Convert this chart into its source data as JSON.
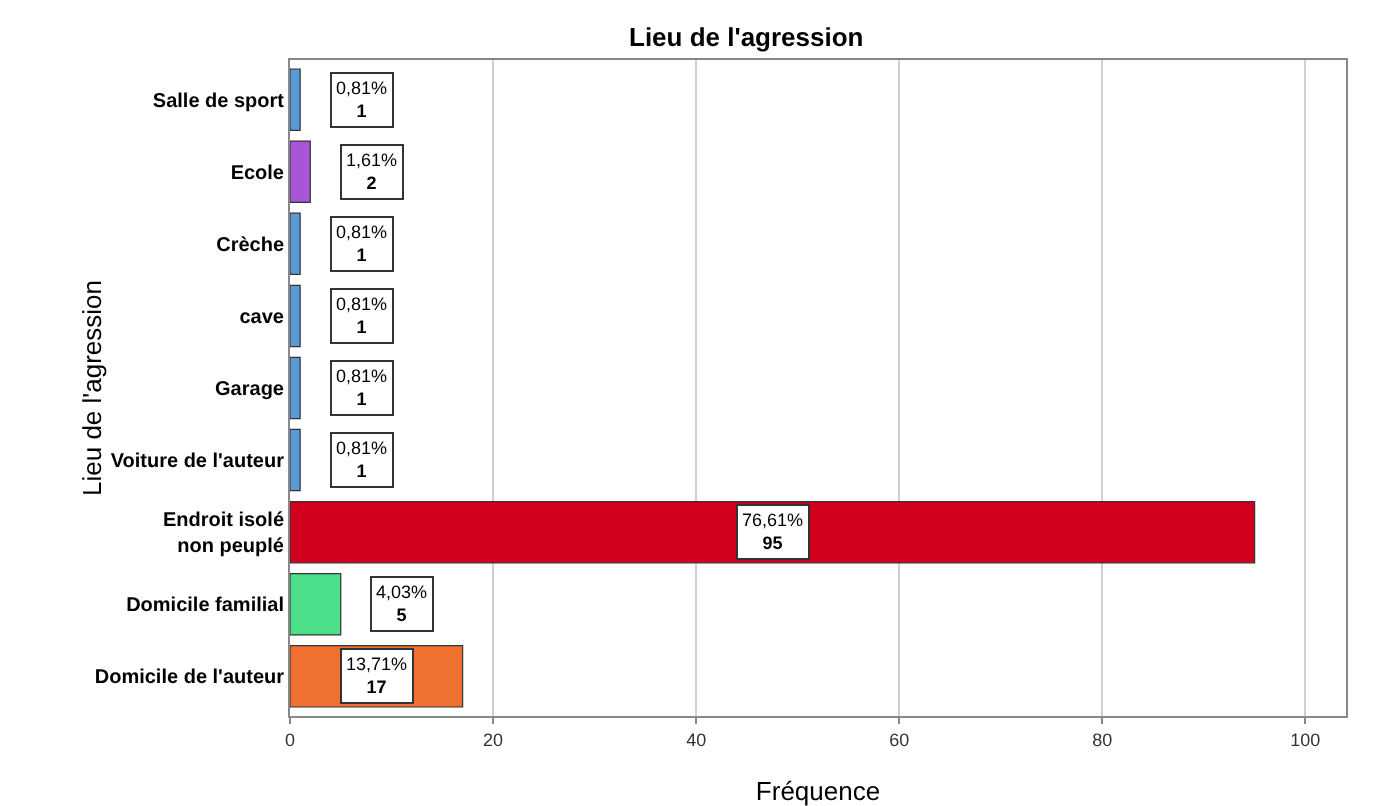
{
  "chart_data": {
    "type": "bar",
    "orientation": "horizontal",
    "title": "Lieu de l'agression",
    "xlabel": "Fréquence",
    "ylabel": "Lieu de l'agression",
    "categories": [
      "Salle de sport",
      "Ecole",
      "Crèche",
      "cave",
      "Garage",
      "Voiture de l'auteur",
      "Endroit isolé\nnon peuplé",
      "Domicile familial",
      "Domicile de l'auteur"
    ],
    "values": [
      1,
      2,
      1,
      1,
      1,
      1,
      95,
      5,
      17
    ],
    "colors": [
      "#5b9bd5",
      "#a855d8",
      "#5b9bd5",
      "#5b9bd5",
      "#5b9bd5",
      "#5b9bd5",
      "#d2001c",
      "#4de08a",
      "#f07030"
    ],
    "value_labels": [
      "0,81%\n1",
      "1,61%\n2",
      "0,81%\n1",
      "0,81%\n1",
      "0,81%\n1",
      "0,81%\n1",
      "76,61%\n95",
      "4,03%\n5",
      "13,71%\n17"
    ],
    "xlim": [
      0,
      104
    ],
    "xticks": [
      0,
      20,
      40,
      60,
      80,
      100
    ],
    "grid": "x"
  }
}
